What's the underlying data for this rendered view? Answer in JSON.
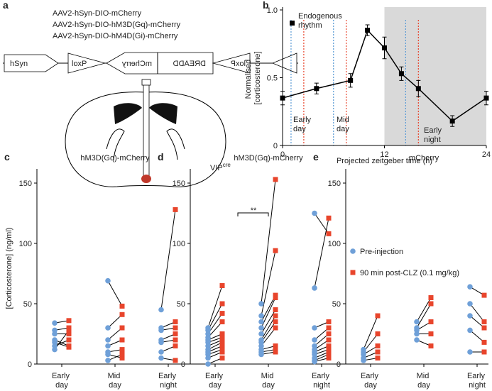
{
  "diagram": {
    "panel_label": "a",
    "constructs": [
      "AAV2-hSyn-DIO-mCherry",
      "AAV2-hSyn-DIO-hM3D(Gq)-mCherry",
      "AAV2-hSyn-DIO-hM4D(Gi)-mCherry"
    ],
    "elements": [
      "hSyn",
      "loxP",
      "mCherry",
      "DREADD",
      "loxP"
    ],
    "target": "VIP",
    "target_sup": "cre"
  },
  "chart_data": [
    {
      "type": "line",
      "panel_label": "b",
      "x_label": "Projected zeitgeber time (h)",
      "y_label": "Normalised [corticosterone]",
      "x": [
        0,
        4,
        8,
        10,
        12,
        14,
        16,
        20,
        24
      ],
      "series": [
        {
          "name": "Endogenous rhythm",
          "color": "#000000",
          "values": [
            0.35,
            0.42,
            0.48,
            0.85,
            0.72,
            0.53,
            0.42,
            0.18,
            0.35
          ],
          "errors": [
            0.05,
            0.04,
            0.05,
            0.04,
            0.08,
            0.05,
            0.06,
            0.04,
            0.05
          ]
        }
      ],
      "xlim": [
        0,
        24
      ],
      "xticks": [
        0,
        12,
        24
      ],
      "ylim": [
        0,
        1
      ],
      "yticks": [
        0,
        0.5,
        {
          "value": 1,
          "label": "1.0"
        }
      ],
      "shade": [
        12,
        24
      ],
      "shade_color": "#d9d9d9",
      "markers": [
        {
          "color": "#5b9bd5",
          "x": [
            1,
            6,
            14.5
          ]
        },
        {
          "color": "#e8452c",
          "x": [
            2.5,
            7.5,
            16
          ]
        }
      ],
      "annotations": [
        "Early day",
        "Mid day",
        "Early night"
      ]
    },
    {
      "type": "paired",
      "panel_label": "c",
      "title": "hM3D(Gq)-mCherry",
      "y_label": "[Corticosterone] (ng/ml)",
      "categories": [
        "Early day",
        "Mid day",
        "Early night"
      ],
      "series": [
        {
          "color": "#6fa0d8",
          "values": [
            [
              34,
              28,
              25,
              20,
              18,
              15,
              12
            ],
            [
              69,
              30,
              20,
              15,
              10,
              8,
              3
            ],
            [
              45,
              30,
              28,
              20,
              18,
              10,
              5
            ]
          ]
        },
        {
          "color": "#e8452c",
          "values": [
            [
              36,
              30,
              25,
              15,
              14,
              20,
              28
            ],
            [
              48,
              41,
              30,
              20,
              12,
              5,
              8
            ],
            [
              128,
              35,
              30,
              25,
              20,
              15,
              3
            ]
          ]
        }
      ],
      "ylim": [
        0,
        160
      ],
      "yticks": [
        0,
        50,
        100,
        150
      ]
    },
    {
      "type": "paired",
      "panel_label": "d",
      "title": "hM3D(Gq)-mCherry",
      "categories": [
        "Early day",
        "Mid day",
        "Early night"
      ],
      "series": [
        {
          "name": "Pre-injection",
          "color": "#6fa0d8",
          "values": [
            [
              30,
              28,
              25,
              22,
              20,
              18,
              15,
              12,
              10,
              8,
              5,
              0
            ],
            [
              50,
              40,
              35,
              30,
              25,
              20,
              18,
              15,
              12,
              10,
              8
            ],
            [
              125,
              63,
              30,
              20,
              15,
              12,
              10,
              8,
              5,
              3,
              2
            ]
          ]
        },
        {
          "name": "90 min post-CLZ (0.1 mg/kg)",
          "color": "#e8452c",
          "values": [
            [
              65,
              50,
              42,
              35,
              25,
              22,
              20,
              18,
              15,
              12,
              10,
              5
            ],
            [
              153,
              94,
              57,
              55,
              45,
              40,
              35,
              30,
              15,
              12,
              10
            ],
            [
              108,
              121,
              35,
              30,
              25,
              20,
              15,
              12,
              10,
              8,
              5
            ]
          ]
        }
      ],
      "significance": {
        "label": "**",
        "category": 1
      },
      "ylim": [
        0,
        160
      ],
      "yticks": [
        0,
        50,
        100,
        150
      ]
    },
    {
      "type": "paired",
      "panel_label": "e",
      "title": "mCherry",
      "categories": [
        "Early day",
        "Mid day",
        "Early night"
      ],
      "series": [
        {
          "color": "#6fa0d8",
          "values": [
            [
              12,
              10,
              8,
              5,
              3
            ],
            [
              35,
              30,
              28,
              25,
              20
            ],
            [
              64,
              50,
              40,
              28,
              10
            ]
          ]
        },
        {
          "color": "#e8452c",
          "values": [
            [
              40,
              25,
              15,
              10,
              5
            ],
            [
              55,
              50,
              35,
              25,
              15
            ],
            [
              57,
              35,
              30,
              18,
              10
            ]
          ]
        }
      ],
      "ylim": [
        0,
        160
      ],
      "yticks": [
        0,
        50,
        100,
        150
      ]
    }
  ]
}
